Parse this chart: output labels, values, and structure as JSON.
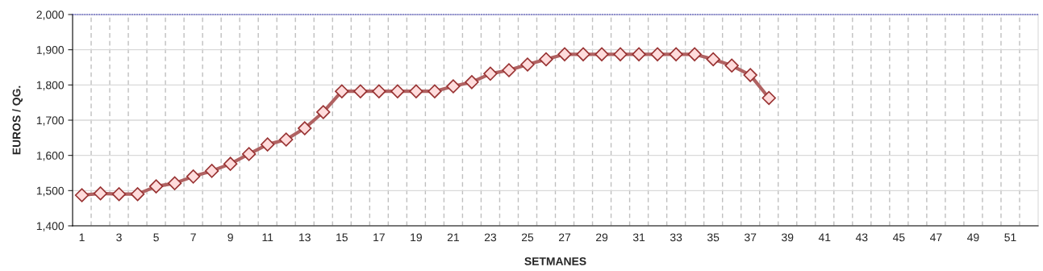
{
  "chart_data": {
    "type": "line",
    "xlabel": "SETMANES",
    "ylabel": "EUROS / QG.",
    "categories": [
      "1",
      null,
      "3",
      null,
      "5",
      null,
      "7",
      null,
      "9",
      null,
      "11",
      null,
      "13",
      null,
      "15",
      null,
      "17",
      null,
      "19",
      null,
      "21",
      null,
      "23",
      null,
      "25",
      null,
      "27",
      null,
      "29",
      null,
      "31",
      null,
      "33",
      null,
      "35",
      null,
      "37",
      null,
      "39",
      null,
      "41",
      null,
      "43",
      null,
      "45",
      null,
      "47",
      null,
      "49",
      null,
      "51",
      null
    ],
    "series": [
      {
        "color": "#b06262",
        "values": [
          1487,
          1492,
          1490,
          1490,
          1512,
          1521,
          1540,
          1556,
          1576,
          1604,
          1631,
          1645,
          1677,
          1723,
          1782,
          1782,
          1782,
          1782,
          1782,
          1782,
          1796,
          1808,
          1832,
          1842,
          1858,
          1873,
          1887,
          1887,
          1887,
          1887,
          1887,
          1887,
          1887,
          1887,
          1873,
          1855,
          1828,
          1763,
          null,
          null,
          null,
          null,
          null,
          null,
          null,
          null,
          null,
          null,
          null,
          null,
          null,
          null
        ]
      }
    ],
    "ylim": [
      1400,
      2000
    ],
    "yticks": [
      {
        "value": 1400,
        "label": "1,400"
      },
      {
        "value": 1500,
        "label": "1,500"
      },
      {
        "value": 1600,
        "label": "1,600"
      },
      {
        "value": 1700,
        "label": "1,700"
      },
      {
        "value": 1800,
        "label": "1,800"
      },
      {
        "value": 1900,
        "label": "1,900"
      },
      {
        "value": 2000,
        "label": "2,000"
      }
    ],
    "grid": true,
    "marker": "diamond",
    "line_style": "solid",
    "legend": false
  }
}
